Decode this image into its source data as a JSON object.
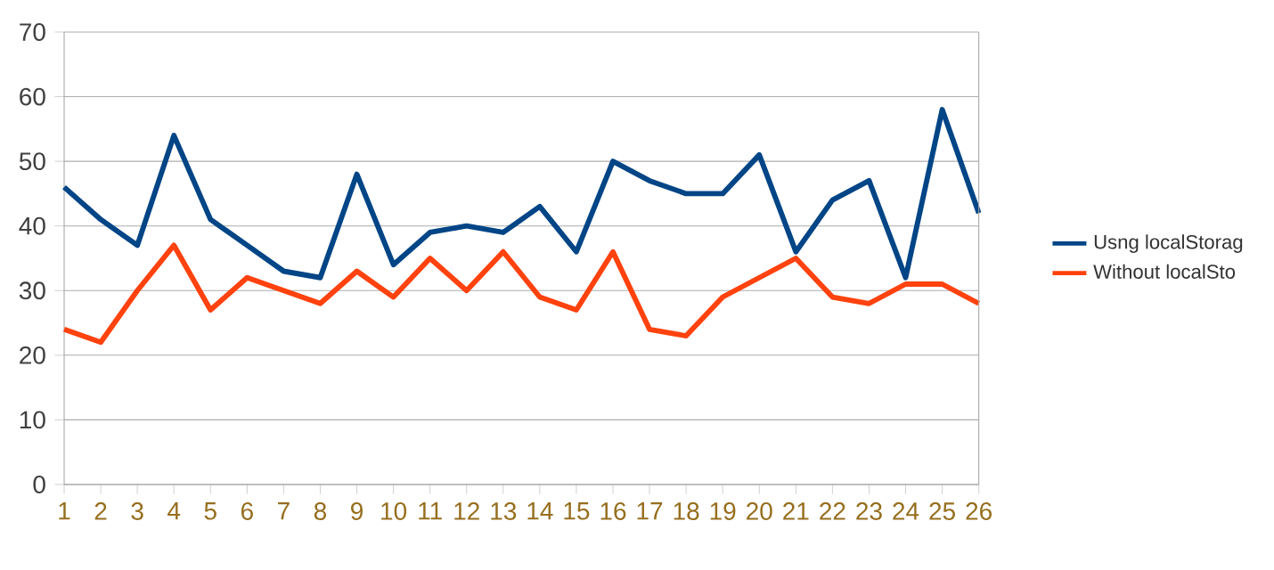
{
  "chart_data": {
    "type": "line",
    "categories": [
      "1",
      "2",
      "3",
      "4",
      "5",
      "6",
      "7",
      "8",
      "9",
      "10",
      "11",
      "12",
      "13",
      "14",
      "15",
      "16",
      "17",
      "18",
      "19",
      "20",
      "21",
      "22",
      "23",
      "24",
      "25",
      "26"
    ],
    "series": [
      {
        "name": "Usng localStorag",
        "color": "#004586",
        "values": [
          46,
          41,
          37,
          54,
          41,
          37,
          33,
          32,
          48,
          34,
          39,
          40,
          39,
          43,
          36,
          50,
          47,
          45,
          45,
          51,
          36,
          44,
          47,
          32,
          58,
          42
        ]
      },
      {
        "name": "Without localSto",
        "color": "#ff420e",
        "values": [
          24,
          22,
          30,
          37,
          27,
          32,
          30,
          28,
          33,
          29,
          35,
          30,
          36,
          29,
          27,
          36,
          24,
          23,
          29,
          32,
          35,
          29,
          28,
          31,
          31,
          28
        ]
      }
    ],
    "ylim": [
      0,
      70
    ],
    "yticks": [
      0,
      10,
      20,
      30,
      40,
      50,
      60,
      70
    ],
    "grid": "y",
    "legend": "right",
    "marker": "none",
    "line_style": "solid"
  }
}
